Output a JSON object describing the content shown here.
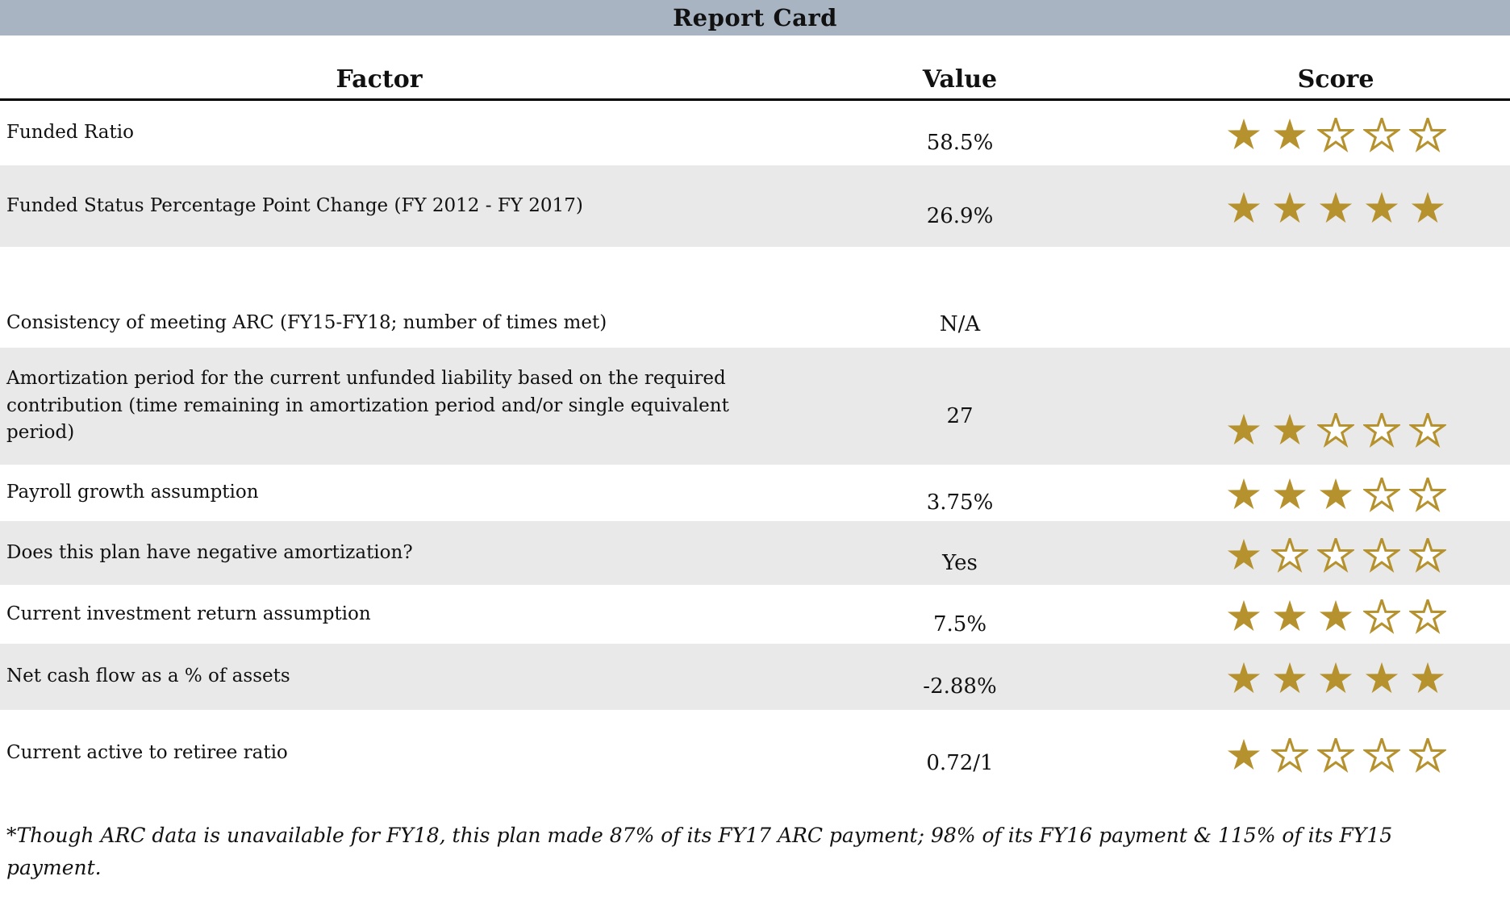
{
  "title": "Report Card",
  "columns": [
    "Factor",
    "Value",
    "Score"
  ],
  "colors": {
    "title_bar_bg": "#a9b4c3",
    "row_alt_bg": "#e9e9e9",
    "star_gold": "#b6922e"
  },
  "rows": [
    {
      "factor": "Funded Ratio",
      "value": "58.5%",
      "score": 2,
      "max": 5
    },
    {
      "factor": "Funded Status Percentage Point Change (FY 2012 - FY 2017)",
      "value": "26.9%",
      "score": 5,
      "max": 5
    },
    {
      "factor": "Consistency of meeting ARC (FY15-FY18; number of times met)",
      "value": "N/A",
      "score": null,
      "max": 5
    },
    {
      "factor": "Amortization period for the current unfunded liability based on the required contribution (time remaining in amortization period and/or single equivalent period)",
      "value": "27",
      "score": 2,
      "max": 5
    },
    {
      "factor": "Payroll growth assumption",
      "value": "3.75%",
      "score": 3,
      "max": 5
    },
    {
      "factor": "Does this plan have negative amortization?",
      "value": "Yes",
      "score": 1,
      "max": 5
    },
    {
      "factor": "Current investment return assumption",
      "value": "7.5%",
      "score": 3,
      "max": 5
    },
    {
      "factor": "Net cash flow as a % of assets",
      "value": "-2.88%",
      "score": 5,
      "max": 5
    },
    {
      "factor": "Current active to retiree ratio",
      "value": "0.72/1",
      "score": 1,
      "max": 5
    }
  ],
  "footnote": "*Though ARC data is unavailable for FY18, this plan made 87% of its FY17 ARC payment; 98% of its FY16 payment & 115% of its FY15 payment."
}
